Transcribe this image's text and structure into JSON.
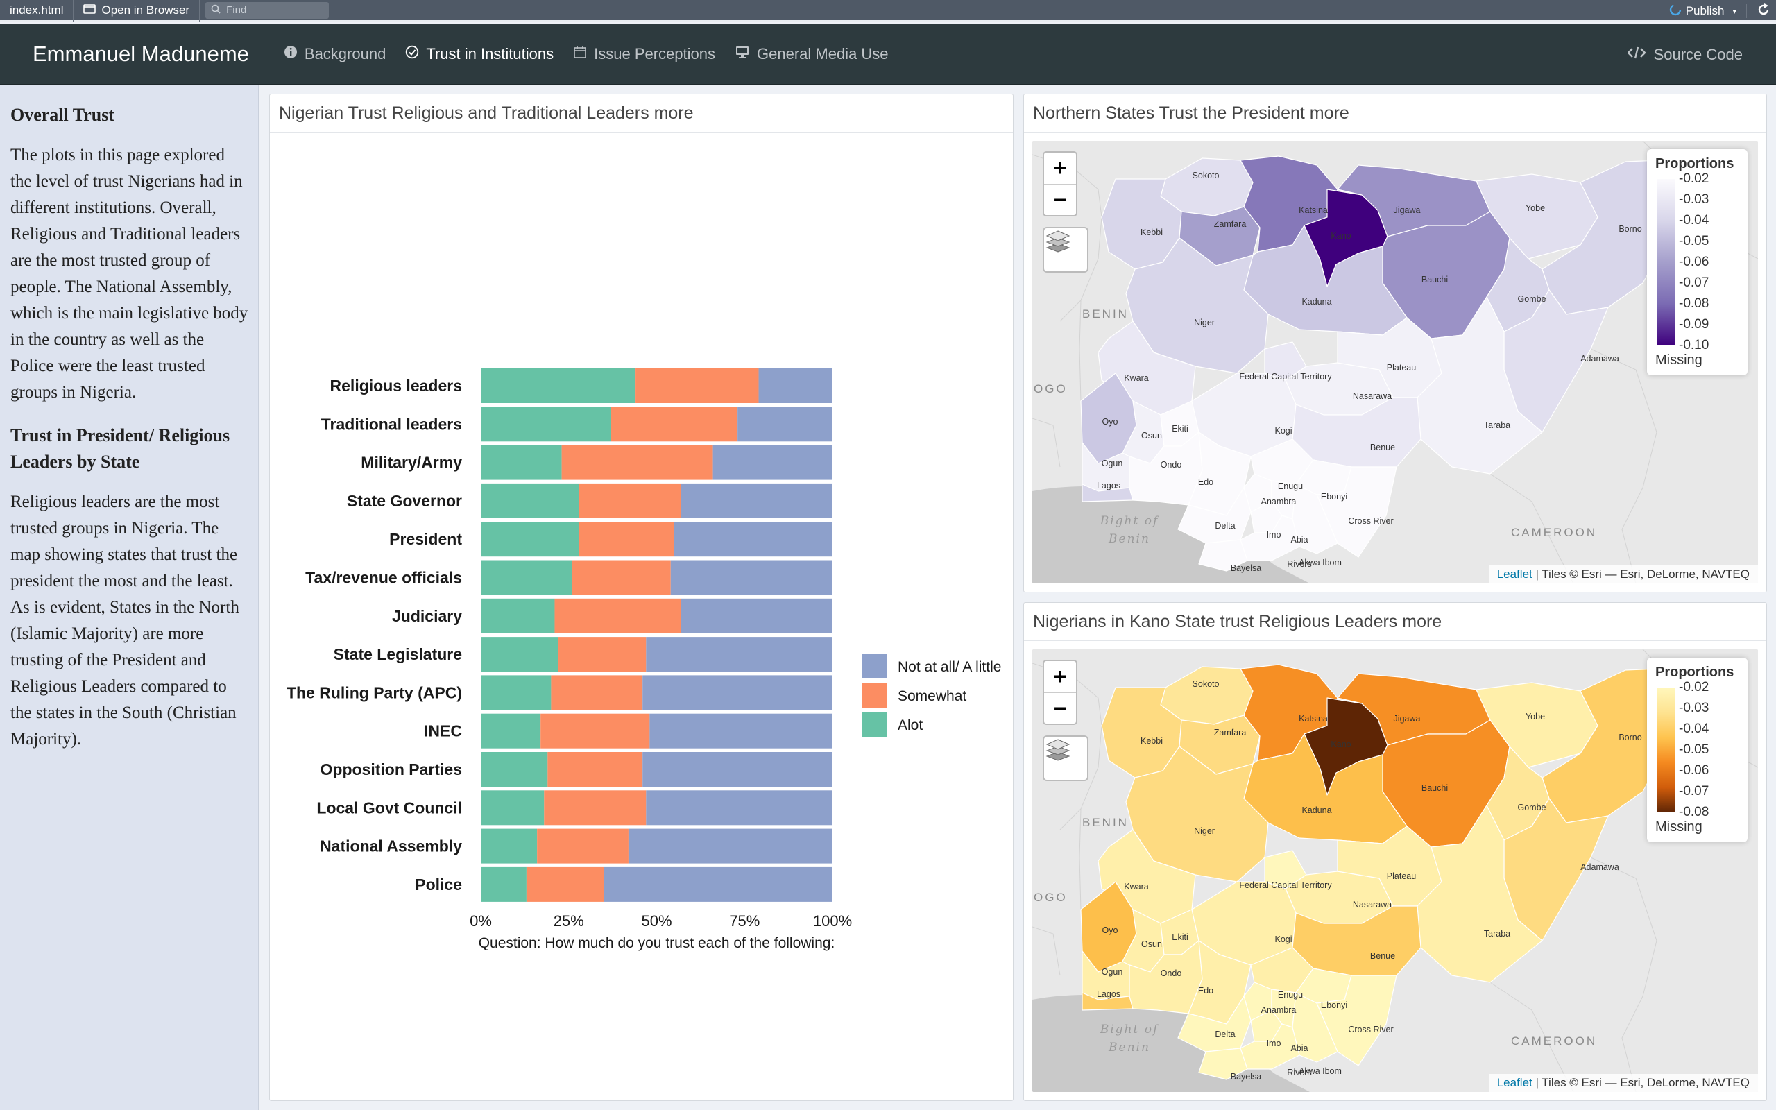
{
  "ide": {
    "file": "index.html",
    "open_browser": "Open in Browser",
    "find_placeholder": "Find",
    "publish": "Publish"
  },
  "nav": {
    "brand": "Emmanuel Maduneme",
    "items": [
      {
        "label": "Background",
        "icon": "info-circle-icon"
      },
      {
        "label": "Trust in Institutions",
        "icon": "check-circle-icon"
      },
      {
        "label": "Issue Perceptions",
        "icon": "calendar-icon"
      },
      {
        "label": "General Media Use",
        "icon": "desktop-icon"
      }
    ],
    "source_code": "Source Code"
  },
  "sidebar": {
    "heading1": "Overall Trust",
    "para1": "The plots in this page explored the level of trust Nigerians had in different institutions. Overall, Religious and Traditional leaders are the most trusted group of people. The National Assembly, which is the main legislative body in the country as well as the Police were the least trusted groups in Nigeria.",
    "heading2": "Trust in President/ Religious Leaders by State",
    "para2": "Religious leaders are the most trusted groups in Nigeria. The map showing states that trust the president the most and the least. As is evident, States in the North (Islamic Majority) are more trusting of the President and Religious Leaders compared to the states in the South (Christian Majority)."
  },
  "chart_card": {
    "title": "Nigerian Trust Religious and Traditional Leaders more"
  },
  "chart_data": {
    "type": "bar",
    "orientation": "horizontal",
    "stacked": "percent",
    "categories": [
      "Religious leaders",
      "Traditional leaders",
      "Military/Army",
      "State Governor",
      "President",
      "Tax/revenue officials",
      "Judiciary",
      "State Legislature",
      "The Ruling Party (APC)",
      "INEC",
      "Opposition Parties",
      "Local Govt Council",
      "National Assembly",
      "Police"
    ],
    "series": [
      {
        "name": "Alot",
        "color": "#66c2a5",
        "values": [
          44,
          37,
          23,
          28,
          28,
          26,
          21,
          22,
          20,
          17,
          19,
          18,
          16,
          13
        ]
      },
      {
        "name": "Somewhat",
        "color": "#fc8d62",
        "values": [
          35,
          36,
          43,
          29,
          27,
          28,
          36,
          25,
          26,
          31,
          27,
          29,
          26,
          22
        ]
      },
      {
        "name": "Not at all/ A little",
        "color": "#8da0cb",
        "values": [
          21,
          27,
          34,
          43,
          45,
          46,
          43,
          53,
          54,
          52,
          54,
          53,
          58,
          65
        ]
      }
    ],
    "legend_order": [
      "Not at all/ A little",
      "Somewhat",
      "Alot"
    ],
    "x_ticks": [
      "0%",
      "25%",
      "50%",
      "75%",
      "100%"
    ],
    "xlabel": "Question: How much do you trust each of the following:",
    "ylabel": "",
    "xlim": [
      0,
      100
    ],
    "legend_position": "right"
  },
  "maps": [
    {
      "title": "Northern States Trust the President more",
      "legend_title": "Proportions",
      "legend_labels": [
        "0.02",
        "0.03",
        "0.04",
        "0.05",
        "0.06",
        "0.07",
        "0.08",
        "0.09",
        "0.10"
      ],
      "legend_missing": "Missing",
      "palette": [
        "#fbfafd",
        "#d8d6ea",
        "#a59fcc",
        "#7b6bb3",
        "#3f007d"
      ],
      "state_values": {
        "Sokoto": 0.035,
        "Zamfara": 0.06,
        "Katsina": 0.075,
        "Kano": 0.1,
        "Jigawa": 0.065,
        "Yobe": 0.035,
        "Borno": 0.04,
        "Kebbi": 0.04,
        "Bauchi": 0.065,
        "Gombe": 0.04,
        "Kaduna": 0.045,
        "Niger": 0.04,
        "Adamawa": 0.035,
        "Plateau": 0.025,
        "Federal Capital Territory": 0.03,
        "Kwara": 0.03,
        "Oyo": 0.045,
        "Nasarawa": 0.025,
        "Taraba": 0.025,
        "Osun": 0.025,
        "Ekiti": 0.02,
        "Kogi": 0.025,
        "Benue": 0.03,
        "Ogun": 0.025,
        "Ondo": 0.02,
        "Edo": 0.02,
        "Enugu": 0.02,
        "Ebonyi": 0.02,
        "Lagos": 0.04,
        "Anambra": 0.02,
        "Cross River": 0.02,
        "Delta": 0.02,
        "Imo": 0.02,
        "Abia": 0.02,
        "Akwa Ibom": 0.02,
        "Rivers": 0.02,
        "Bayelsa": 0.02
      }
    },
    {
      "title": "Nigerians in Kano State trust Religious Leaders more",
      "legend_title": "Proportions",
      "legend_labels": [
        "0.02",
        "0.03",
        "0.04",
        "0.05",
        "0.06",
        "0.07",
        "0.08"
      ],
      "legend_missing": "Missing",
      "palette": [
        "#fff7bc",
        "#fee391",
        "#fec44f",
        "#f58a20",
        "#d15d0b",
        "#5e2505"
      ],
      "state_values": {
        "Sokoto": 0.03,
        "Zamfara": 0.035,
        "Katsina": 0.055,
        "Kano": 0.08,
        "Jigawa": 0.055,
        "Yobe": 0.025,
        "Borno": 0.04,
        "Kebbi": 0.035,
        "Bauchi": 0.055,
        "Gombe": 0.03,
        "Kaduna": 0.045,
        "Niger": 0.035,
        "Adamawa": 0.035,
        "Plateau": 0.025,
        "Federal Capital Territory": 0.02,
        "Kwara": 0.025,
        "Oyo": 0.045,
        "Nasarawa": 0.025,
        "Taraba": 0.025,
        "Osun": 0.025,
        "Ekiti": 0.025,
        "Kogi": 0.025,
        "Benue": 0.04,
        "Ogun": 0.025,
        "Ondo": 0.025,
        "Edo": 0.025,
        "Enugu": 0.025,
        "Ebonyi": 0.02,
        "Lagos": 0.04,
        "Anambra": 0.02,
        "Cross River": 0.02,
        "Delta": 0.02,
        "Imo": 0.02,
        "Abia": 0.02,
        "Akwa Ibom": 0.02,
        "Rivers": 0.02,
        "Bayelsa": 0.02
      }
    }
  ],
  "map_common": {
    "country_labels": [
      "BENIN",
      "OGO",
      "CAMEROON"
    ],
    "sea_label": "Bight of Benin",
    "attribution_link": "Leaflet",
    "attribution_text": " | Tiles © Esri — Esri, DeLorme, NAVTEQ",
    "zoom_in": "+",
    "zoom_out": "−"
  }
}
